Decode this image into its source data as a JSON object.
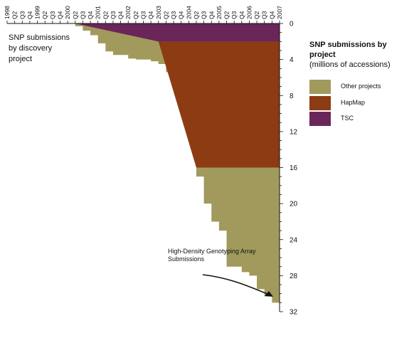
{
  "chart_data": {
    "type": "area",
    "title": "SNP submissions by project",
    "subtitle": "(millions of accessions)",
    "side_label": "SNP submissions by discovery project",
    "x_ticks": [
      "1998",
      "Q2",
      "Q3",
      "Q4",
      "1999",
      "Q2",
      "Q3",
      "Q4",
      "2000",
      "Q2",
      "Q3",
      "Q4",
      "2001",
      "Q2",
      "Q3",
      "Q4",
      "2002",
      "Q2",
      "Q3",
      "Q4",
      "2003",
      "Q2",
      "Q3",
      "Q4",
      "2004",
      "Q2",
      "Q3",
      "Q4",
      "2005",
      "Q2",
      "Q3",
      "Q4",
      "2006",
      "Q2",
      "Q3",
      "Q4",
      "2007"
    ],
    "y_ticks": [
      0,
      4,
      8,
      12,
      16,
      20,
      24,
      28,
      32
    ],
    "ylim": [
      0,
      32
    ],
    "y_axis_inverted": true,
    "y_axis_position": "right",
    "x_axis_position": "top",
    "legend_placement": "right",
    "series": [
      {
        "name": "Other projects",
        "color": "#a19a5c",
        "points": [
          [
            8.4,
            0
          ],
          [
            9,
            0.3
          ],
          [
            10,
            0.8
          ],
          [
            11,
            1.3
          ],
          [
            12,
            2.2
          ],
          [
            13,
            3.1
          ],
          [
            14,
            3.5
          ],
          [
            16,
            3.9
          ],
          [
            17,
            4.0
          ],
          [
            19,
            4.2
          ],
          [
            20,
            4.5
          ],
          [
            21,
            5.4
          ],
          [
            22,
            6.1
          ],
          [
            23,
            6.8
          ],
          [
            24,
            9.0
          ],
          [
            25,
            17.0
          ],
          [
            26,
            20.0
          ],
          [
            27,
            22.0
          ],
          [
            28,
            23.0
          ],
          [
            29,
            27.0
          ],
          [
            31,
            27.6
          ],
          [
            32,
            28.0
          ],
          [
            33,
            29.5
          ],
          [
            34,
            30.3
          ],
          [
            35,
            31.0
          ],
          [
            36,
            31.0
          ]
        ]
      },
      {
        "name": "HapMap",
        "color": "#8c3b13",
        "points": [
          [
            20,
            2.0
          ],
          [
            36,
            2.0
          ],
          [
            36,
            16.0
          ],
          [
            25,
            16.0
          ]
        ]
      },
      {
        "name": "TSC",
        "color": "#6a2559",
        "points": [
          [
            9,
            0
          ],
          [
            36,
            0
          ],
          [
            36,
            2.0
          ],
          [
            20,
            2.0
          ]
        ]
      }
    ],
    "annotation": "High-Density Genotyping Array Submissions"
  }
}
